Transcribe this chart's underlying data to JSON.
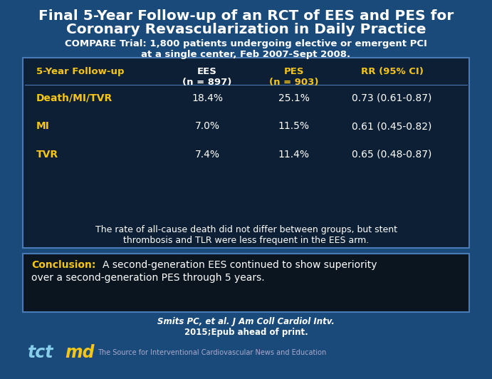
{
  "title_line1": "Final 5-Year Follow-up of an RCT of EES and PES for",
  "title_line2": "Coronary Revascularization in Daily Practice",
  "subtitle_line1": "COMPARE Trial: 1,800 patients undergoing elective or emergent PCI",
  "subtitle_line2": "at a single center, Feb 2007-Sept 2008.",
  "bg_color": "#1a4a7a",
  "table_bg": "#0d1f35",
  "table_border": "#4a7ab5",
  "header_col1": "5-Year Follow-up",
  "header_col2": "EES\n(n = 897)",
  "header_col3": "PES\n(n = 903)",
  "header_col4": "RR (95% CI)",
  "rows": [
    [
      "Death/MI/TVR",
      "18.4%",
      "25.1%",
      "0.73 (0.61-0.87)"
    ],
    [
      "MI",
      "7.0%",
      "11.5%",
      "0.61 (0.45-0.82)"
    ],
    [
      "TVR",
      "7.4%",
      "11.4%",
      "0.65 (0.48-0.87)"
    ]
  ],
  "note_line1": "The rate of all-cause death did not differ between groups, but stent",
  "note_line2": "thrombosis and TLR were less frequent in the EES arm.",
  "conclusion_label": "Conclusion:",
  "conclusion_line1": "  A second-generation EES continued to show superiority",
  "conclusion_line2": "over a second-generation PES through 5 years.",
  "citation_line1": "Smits PC, et al. J Am Coll Cardiol Intv.",
  "citation_line2": "2015;Epub ahead of print.",
  "footer_text": "The Source for Interventional Cardiovascular News and Education",
  "title_color": "#ffffff",
  "subtitle_color": "#ffffff",
  "header_color_label": "#f5c518",
  "header_color_ees": "#ffffff",
  "header_color_pes": "#f5c518",
  "header_color_rr": "#f5c518",
  "row_label_color": "#f5c518",
  "row_data_color": "#ffffff",
  "note_color": "#ffffff",
  "conclusion_label_color": "#f5c518",
  "conclusion_text_color": "#ffffff",
  "citation_color": "#ffffff",
  "footer_color": "#aaaacc",
  "tct_color_tct": "#87ceeb",
  "tct_color_md": "#f5c518",
  "conc_bg": "#0a1520"
}
